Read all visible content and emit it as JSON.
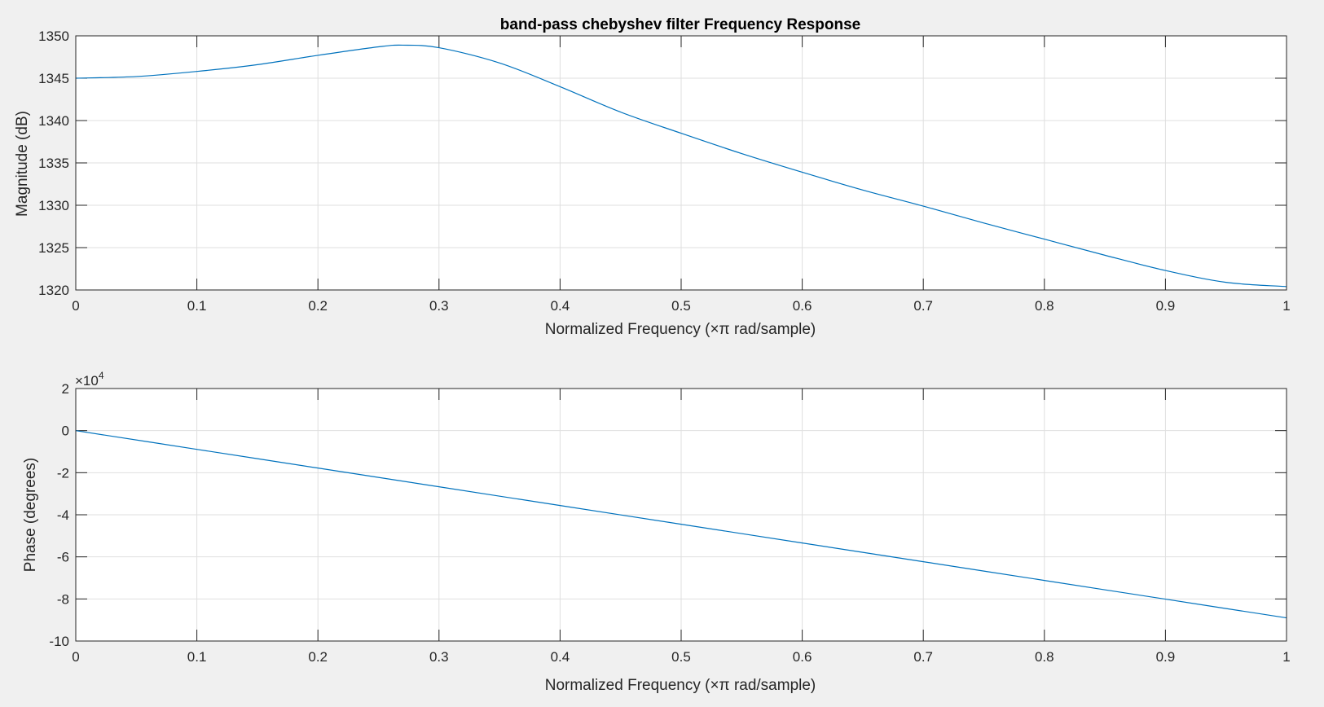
{
  "chart_data": [
    {
      "type": "line",
      "title": "band-pass chebyshev filter Frequency Response",
      "xlabel": "Normalized Frequency  (×π rad/sample)",
      "ylabel": "Magnitude (dB)",
      "xlim": [
        0,
        1
      ],
      "ylim": [
        1320,
        1350
      ],
      "xticks": [
        "0",
        "0.1",
        "0.2",
        "0.3",
        "0.4",
        "0.5",
        "0.6",
        "0.7",
        "0.8",
        "0.9",
        "1"
      ],
      "yticks": [
        "1320",
        "1325",
        "1330",
        "1335",
        "1340",
        "1345",
        "1350"
      ],
      "grid": true,
      "line_color": "#0072bd",
      "x": [
        0,
        0.05,
        0.1,
        0.15,
        0.2,
        0.25,
        0.27,
        0.3,
        0.35,
        0.4,
        0.45,
        0.5,
        0.55,
        0.6,
        0.65,
        0.7,
        0.75,
        0.8,
        0.85,
        0.9,
        0.95,
        1.0
      ],
      "y": [
        1345.0,
        1345.2,
        1345.8,
        1346.6,
        1347.7,
        1348.7,
        1348.9,
        1348.6,
        1346.8,
        1344.0,
        1341.0,
        1338.5,
        1336.1,
        1333.9,
        1331.8,
        1329.9,
        1327.9,
        1326.0,
        1324.1,
        1322.3,
        1320.9,
        1320.4
      ]
    },
    {
      "type": "line",
      "xlabel": "Normalized Frequency  (×π rad/sample)",
      "ylabel": "Phase (degrees)",
      "xlim": [
        0,
        1
      ],
      "ylim": [
        -100000,
        20000
      ],
      "xticks": [
        "0",
        "0.1",
        "0.2",
        "0.3",
        "0.4",
        "0.5",
        "0.6",
        "0.7",
        "0.8",
        "0.9",
        "1"
      ],
      "yticks": [
        "-10",
        "-8",
        "-6",
        "-4",
        "-2",
        "0",
        "2"
      ],
      "exponent_label": "×10",
      "exponent_power": "4",
      "grid": true,
      "line_color": "#0072bd",
      "x": [
        0,
        0.1,
        0.2,
        0.3,
        0.4,
        0.5,
        0.6,
        0.7,
        0.8,
        0.9,
        1.0
      ],
      "y": [
        0,
        -8900,
        -17800,
        -26700,
        -35600,
        -44500,
        -53400,
        -62300,
        -71200,
        -80100,
        -89000
      ]
    }
  ]
}
